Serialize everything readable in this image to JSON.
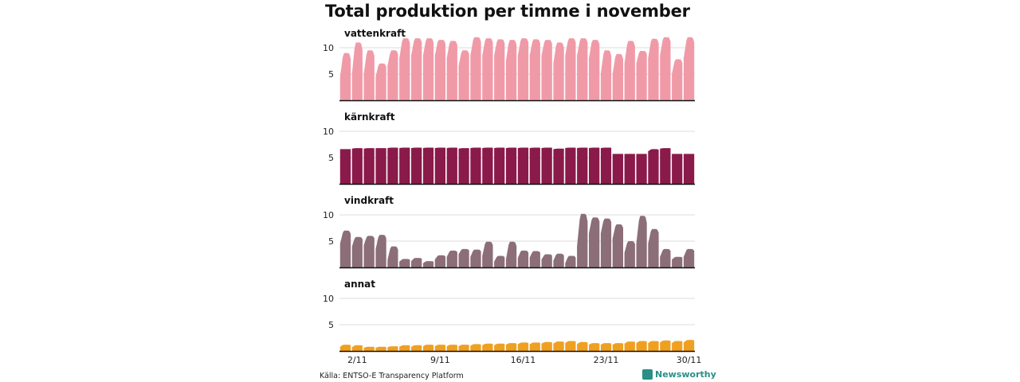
{
  "chart_data": {
    "type": "area",
    "title": "Total produktion per timme i november",
    "days": [
      1,
      2,
      3,
      4,
      5,
      6,
      7,
      8,
      9,
      10,
      11,
      12,
      13,
      14,
      15,
      16,
      17,
      18,
      19,
      20,
      21,
      22,
      23,
      24,
      25,
      26,
      27,
      28,
      29,
      30
    ],
    "x_tick_labels": [
      {
        "day": 2,
        "label": "2/11"
      },
      {
        "day": 9,
        "label": "9/11"
      },
      {
        "day": 16,
        "label": "16/11"
      },
      {
        "day": 23,
        "label": "23/11"
      },
      {
        "day": 30,
        "label": "30/11"
      }
    ],
    "ylim": [
      0,
      10
    ],
    "y_ticks": [
      5,
      10
    ],
    "source": "Källa: ENTSO-E Transparency Platform",
    "brand": "Newsworthy",
    "series": [
      {
        "name": "vattenkraft",
        "color": "#f09aa8",
        "daily_max": [
          9,
          11,
          9.5,
          7,
          9.5,
          11.8,
          11.8,
          11.8,
          11.5,
          11.3,
          9.5,
          12,
          11.8,
          11.6,
          11.5,
          11.8,
          11.6,
          11.5,
          11,
          11.8,
          11.8,
          11.5,
          9.5,
          8.8,
          11.3,
          9.4,
          11.7,
          12,
          7.8,
          12
        ],
        "daily_min": [
          4.5,
          5,
          5,
          4.5,
          6.5,
          8,
          8.5,
          8.5,
          8.5,
          8,
          6.5,
          8.5,
          8.5,
          8.5,
          7.5,
          8.5,
          8.5,
          8.5,
          7,
          8.5,
          8.5,
          8,
          5,
          5,
          7,
          7,
          8,
          8.5,
          5,
          8
        ]
      },
      {
        "name": "kärnkraft",
        "color": "#8a1a4a",
        "daily_max": [
          6.6,
          6.8,
          6.8,
          6.8,
          6.9,
          6.9,
          6.9,
          6.9,
          6.9,
          6.9,
          6.8,
          6.9,
          6.9,
          6.9,
          6.9,
          6.9,
          6.9,
          6.9,
          6.7,
          6.9,
          6.9,
          6.9,
          6.9,
          5.7,
          5.7,
          5.7,
          6.6,
          6.8,
          5.7,
          5.7
        ],
        "daily_min": [
          6.6,
          6.7,
          6.7,
          6.8,
          6.8,
          6.8,
          6.8,
          6.8,
          6.8,
          6.8,
          6.7,
          6.8,
          6.8,
          6.8,
          6.8,
          6.8,
          6.8,
          6.8,
          6.6,
          6.8,
          6.8,
          6.8,
          6.8,
          5.7,
          5.7,
          5.7,
          6.2,
          6.7,
          5.7,
          5.7
        ]
      },
      {
        "name": "vindkraft",
        "color": "#8c6e78",
        "daily_max": [
          7,
          5.8,
          6,
          6.2,
          4,
          1.6,
          1.8,
          1.2,
          2.3,
          3.2,
          3.5,
          3.4,
          4.9,
          2.2,
          4.9,
          3.2,
          3.1,
          2.5,
          2.6,
          2.2,
          10.2,
          9.5,
          9.3,
          8.2,
          5,
          9.8,
          7.3,
          3.5,
          2,
          3.5
        ],
        "daily_min": [
          4.5,
          4,
          4.2,
          3.5,
          1.4,
          1.1,
          1.2,
          0.8,
          1.5,
          2,
          2.5,
          2,
          2.2,
          1.1,
          1.5,
          1.8,
          1.9,
          1.5,
          1.3,
          0.8,
          4,
          6.5,
          6.5,
          5.5,
          2.8,
          4.5,
          4.5,
          2,
          1.5,
          2
        ]
      },
      {
        "name": "annat",
        "color": "#f0a020",
        "daily_max": [
          1.2,
          1.1,
          0.8,
          0.8,
          0.9,
          1.1,
          1.1,
          1.2,
          1.2,
          1.2,
          1.2,
          1.3,
          1.4,
          1.4,
          1.5,
          1.6,
          1.6,
          1.7,
          1.8,
          1.9,
          1.7,
          1.5,
          1.5,
          1.5,
          1.8,
          1.9,
          1.9,
          2,
          1.9,
          2.1
        ],
        "daily_min": [
          0.8,
          0.7,
          0.6,
          0.6,
          0.7,
          0.8,
          0.8,
          0.9,
          0.9,
          0.9,
          0.9,
          1,
          1.1,
          1.1,
          1.2,
          1.3,
          1.3,
          1.4,
          1.4,
          1.5,
          1.3,
          1.2,
          1.2,
          1.2,
          1.4,
          1.5,
          1.5,
          1.6,
          1.5,
          1.6
        ]
      }
    ]
  }
}
